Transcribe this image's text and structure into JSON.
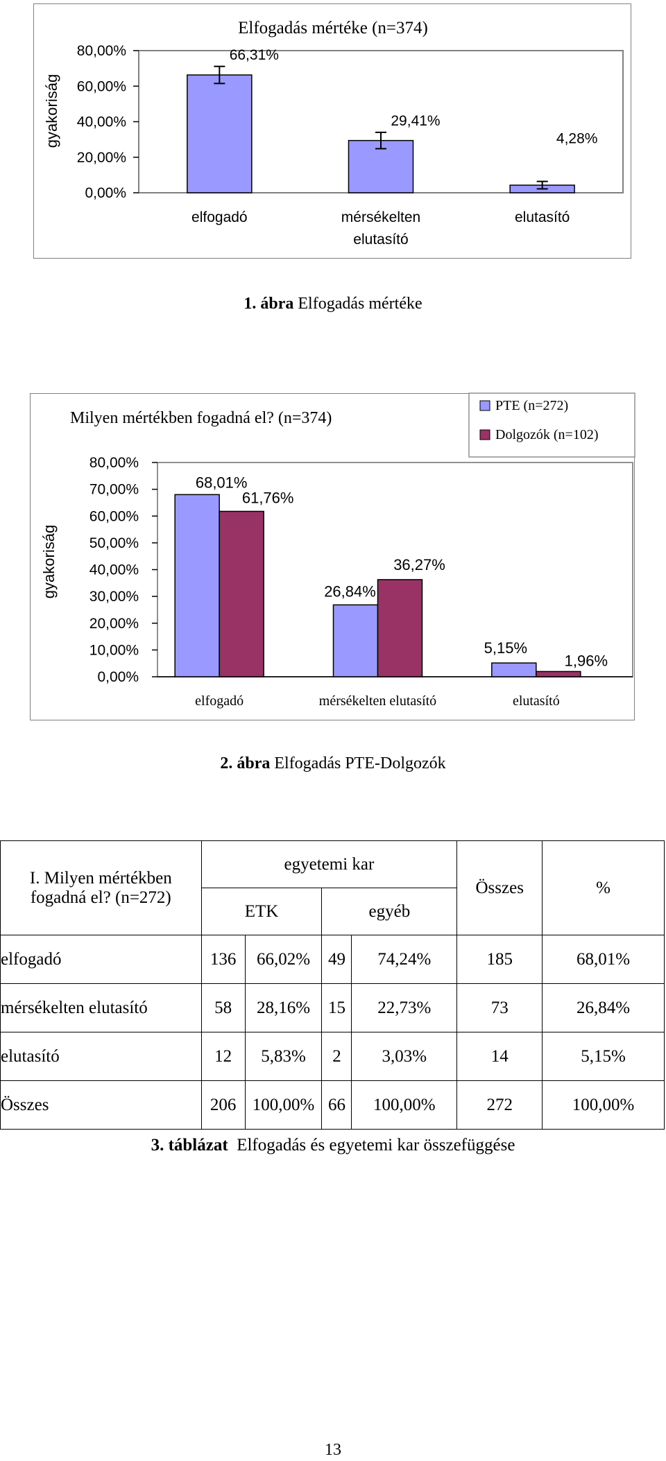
{
  "fig1": {
    "title": "Elfogadás mértéke (n=374)",
    "ylabel": "gyakoriság",
    "caption_bold": "1. ábra",
    "caption_text": "Elfogadás mértéke"
  },
  "fig2": {
    "title": "Milyen mértékben fogadná el? (n=374)",
    "ylabel": "gyakoriság",
    "caption_bold": "2. ábra",
    "caption_text": "Elfogadás PTE-Dolgozók"
  },
  "table": {
    "question_line1": "I. Milyen mértékben",
    "question_line2": "fogadná el? (n=272)",
    "group_header": "egyetemi kar",
    "sub_etk": "ETK",
    "sub_egyeb": "egyéb",
    "col_total": "Összes",
    "col_pct": "%",
    "rows": [
      {
        "label": "elfogadó",
        "c1": "136",
        "c2": "66,02%",
        "c3": "49",
        "c4": "74,24%",
        "c5": "185",
        "c6": "68,01%"
      },
      {
        "label": "mérsékelten elutasító",
        "c1": "58",
        "c2": "28,16%",
        "c3": "15",
        "c4": "22,73%",
        "c5": "73",
        "c6": "26,84%"
      },
      {
        "label": "elutasító",
        "c1": "12",
        "c2": "5,83%",
        "c3": "2",
        "c4": "3,03%",
        "c5": "14",
        "c6": "5,15%"
      },
      {
        "label": "Összes",
        "c1": "206",
        "c2": "100,00%",
        "c3": "66",
        "c4": "100,00%",
        "c5": "272",
        "c6": "100,00%"
      }
    ],
    "caption_bold": "3. táblázat",
    "caption_text": "Elfogadás és egyetemi kar összefüggése"
  },
  "page_number": "13",
  "colors": {
    "pte": "#9999ff",
    "dolgozok": "#993366"
  },
  "chart_data": [
    {
      "type": "bar",
      "title": "Elfogadás mértéke (n=374)",
      "ylabel": "gyakoriság",
      "xlabel": "",
      "ylim": [
        0,
        80
      ],
      "yticks": [
        "80,00%",
        "60,00%",
        "40,00%",
        "20,00%",
        "0,00%"
      ],
      "categories": [
        "elfogadó",
        "mérsékelten elutasító",
        "elutasító"
      ],
      "category_lines": [
        [
          "elfogadó"
        ],
        [
          "mérsékelten",
          "elutasító"
        ],
        [
          "elutasító"
        ]
      ],
      "values": [
        66.31,
        29.41,
        4.28
      ],
      "labels": [
        "66,31%",
        "29,41%",
        "4,28%"
      ],
      "error_bars": [
        4.8,
        4.6,
        2.1
      ],
      "grid": false
    },
    {
      "type": "bar",
      "title": "Milyen mértékben fogadná el? (n=374)",
      "ylabel": "gyakoriság",
      "xlabel": "",
      "ylim": [
        0,
        80
      ],
      "yticks": [
        "80,00%",
        "70,00%",
        "60,00%",
        "50,00%",
        "40,00%",
        "30,00%",
        "20,00%",
        "10,00%",
        "0,00%"
      ],
      "categories": [
        "elfogadó",
        "mérsékelten elutasító",
        "elutasító"
      ],
      "legend_position": "top-right",
      "series": [
        {
          "name": "PTE (n=272)",
          "values": [
            68.01,
            26.84,
            5.15
          ],
          "labels": [
            "68,01%",
            "26,84%",
            "5,15%"
          ]
        },
        {
          "name": "Dolgozók (n=102)",
          "values": [
            61.76,
            36.27,
            1.96
          ],
          "labels": [
            "61,76%",
            "36,27%",
            "1,96%"
          ]
        }
      ],
      "grid": false
    }
  ]
}
